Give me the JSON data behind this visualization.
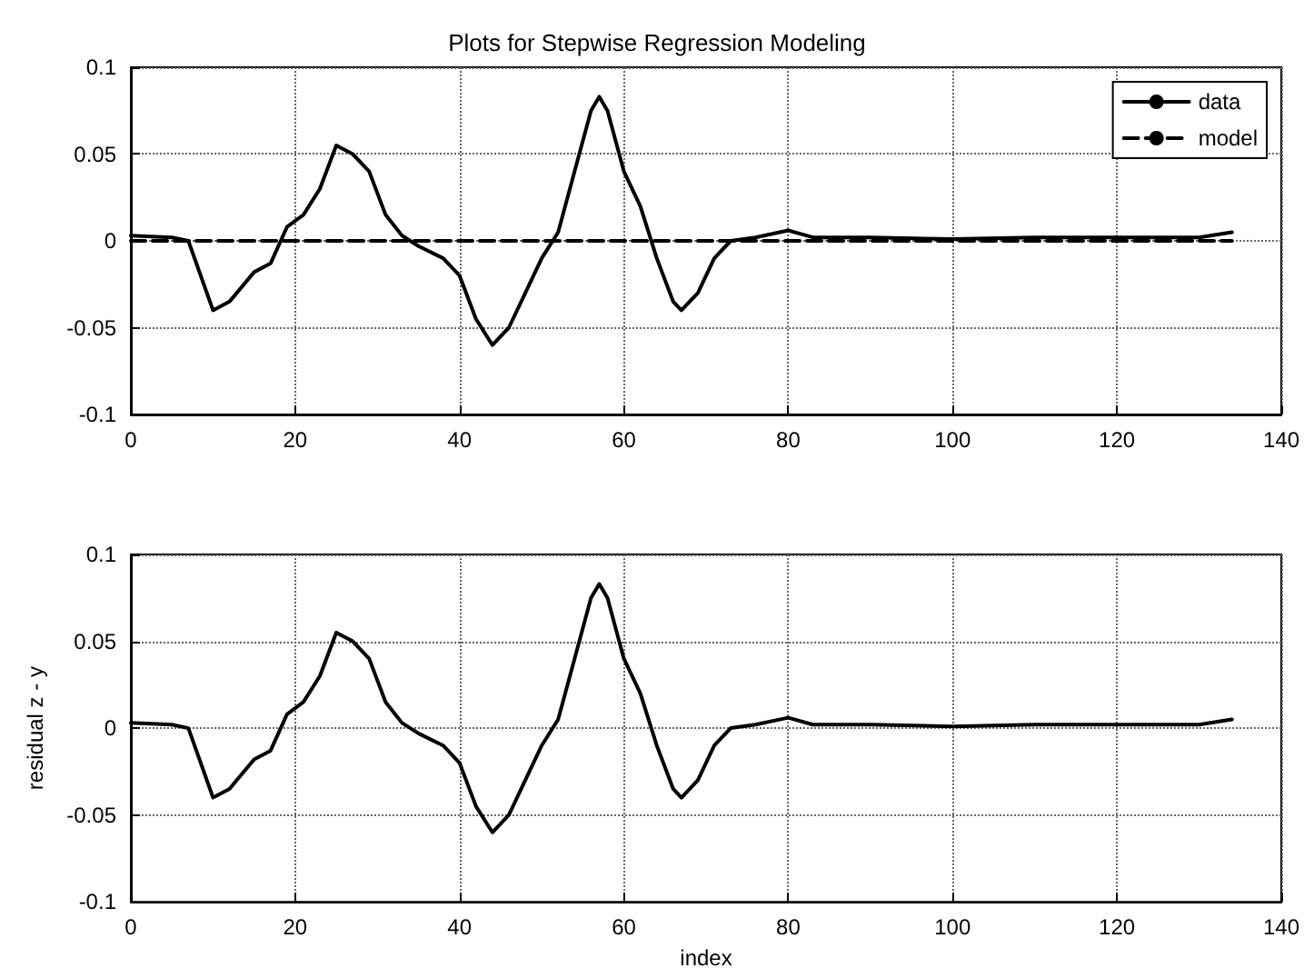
{
  "chart_data": [
    {
      "type": "line",
      "title": "Plots for Stepwise Regression Modeling",
      "xlim": [
        0,
        140
      ],
      "xticks": [
        0,
        20,
        40,
        60,
        80,
        100,
        120,
        140
      ],
      "ylim": [
        -0.1,
        0.1
      ],
      "yticks": [
        -0.1,
        -0.05,
        0,
        0.05,
        0.1
      ],
      "grid": true,
      "legend": "top right",
      "marker": "none",
      "series": [
        {
          "name": "data",
          "color": "#000000",
          "line_style": "solid",
          "x": [
            0,
            5,
            7,
            10,
            12,
            15,
            17,
            19,
            21,
            23,
            25,
            27,
            29,
            31,
            33,
            35,
            38,
            40,
            42,
            44,
            46,
            48,
            50,
            52,
            54,
            56,
            57,
            58,
            60,
            62,
            64,
            66,
            67,
            69,
            71,
            73,
            76,
            80,
            83,
            90,
            100,
            110,
            120,
            130,
            134
          ],
          "values": [
            0.003,
            0.002,
            0,
            -0.04,
            -0.035,
            -0.018,
            -0.013,
            0.008,
            0.015,
            0.03,
            0.055,
            0.05,
            0.04,
            0.015,
            0.003,
            -0.003,
            -0.01,
            -0.02,
            -0.045,
            -0.06,
            -0.05,
            -0.03,
            -0.01,
            0.005,
            0.04,
            0.075,
            0.083,
            0.075,
            0.04,
            0.02,
            -0.01,
            -0.035,
            -0.04,
            -0.03,
            -0.01,
            0,
            0.002,
            0.006,
            0.002,
            0.002,
            0.001,
            0.002,
            0.002,
            0.002,
            0.005
          ]
        },
        {
          "name": "model",
          "color": "#000000",
          "line_style": "dashed",
          "x": [
            0,
            134
          ],
          "values": [
            0,
            0
          ]
        }
      ]
    },
    {
      "type": "line",
      "xlabel": "index",
      "ylabel": "residual z - y",
      "xlim": [
        0,
        140
      ],
      "xticks": [
        0,
        20,
        40,
        60,
        80,
        100,
        120,
        140
      ],
      "ylim": [
        -0.1,
        0.1
      ],
      "yticks": [
        -0.1,
        -0.05,
        0,
        0.05,
        0.1
      ],
      "grid": true,
      "marker": "none",
      "series": [
        {
          "color": "#000000",
          "line_style": "solid",
          "x": [
            0,
            5,
            7,
            10,
            12,
            15,
            17,
            19,
            21,
            23,
            25,
            27,
            29,
            31,
            33,
            35,
            38,
            40,
            42,
            44,
            46,
            48,
            50,
            52,
            54,
            56,
            57,
            58,
            60,
            62,
            64,
            66,
            67,
            69,
            71,
            73,
            76,
            80,
            83,
            90,
            100,
            110,
            120,
            130,
            134
          ],
          "values": [
            0.003,
            0.002,
            0,
            -0.04,
            -0.035,
            -0.018,
            -0.013,
            0.008,
            0.015,
            0.03,
            0.055,
            0.05,
            0.04,
            0.015,
            0.003,
            -0.003,
            -0.01,
            -0.02,
            -0.045,
            -0.06,
            -0.05,
            -0.03,
            -0.01,
            0.005,
            0.04,
            0.075,
            0.083,
            0.075,
            0.04,
            0.02,
            -0.01,
            -0.035,
            -0.04,
            -0.03,
            -0.01,
            0,
            0.002,
            0.006,
            0.002,
            0.002,
            0.001,
            0.002,
            0.002,
            0.002,
            0.005
          ]
        }
      ]
    }
  ]
}
